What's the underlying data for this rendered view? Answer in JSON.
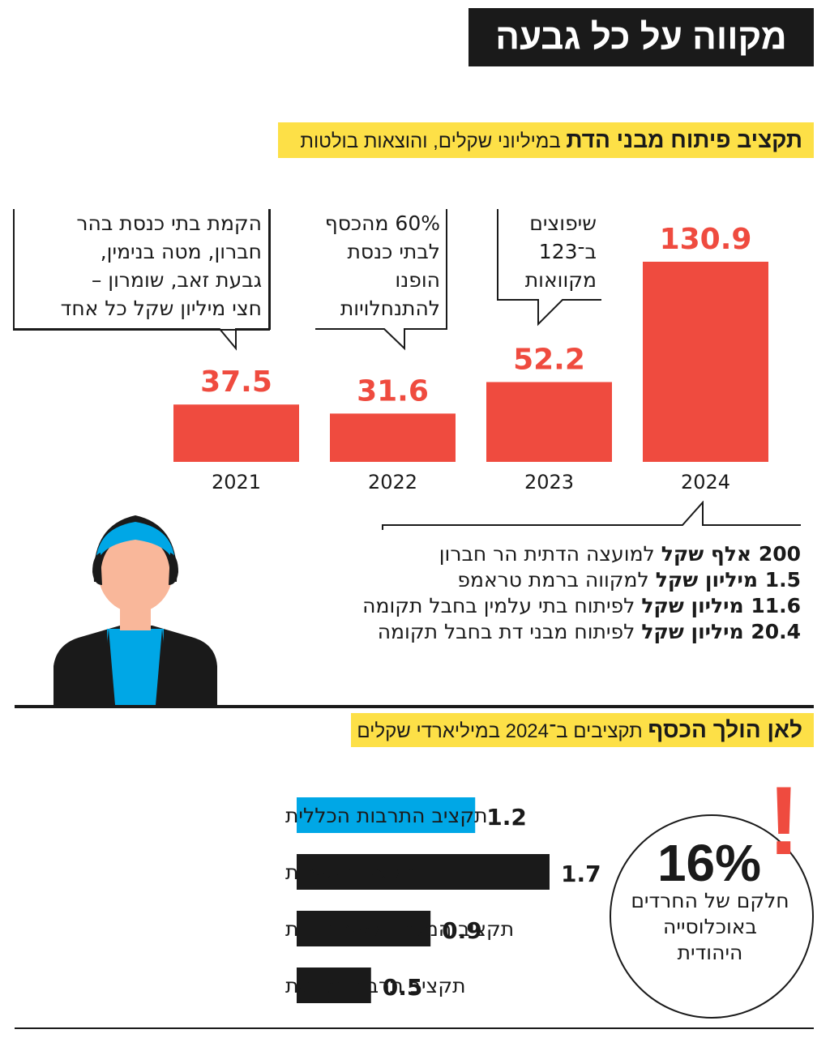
{
  "title": "מקווה על כל גבעה",
  "section1": {
    "heading_bold": "תקציב פיתוח מבני הדת",
    "heading_rest": "במיליוני שקלים, והוצאות בולטות"
  },
  "chart_data": [
    {
      "type": "bar",
      "categories": [
        "2021",
        "2022",
        "2023",
        "2024"
      ],
      "values": [
        37.5,
        31.6,
        52.2,
        130.9
      ],
      "value_labels": [
        "37.5",
        "31.6",
        "52.2",
        "130.9"
      ],
      "bar_color": "#ef4b3f",
      "label_color": "#ef4b3f",
      "title": "תקציב פיתוח מבני הדת במיליוני שקלים, והוצאות בולטות",
      "ylim": [
        0,
        130.9
      ],
      "grid": false
    },
    {
      "type": "bar",
      "orientation": "horizontal",
      "categories": [
        "תקציב התרבות הכללית",
        "תקציב הישיבות",
        "תקציב המשרד לשירותי דת",
        "תקציב תרבות תורנית"
      ],
      "values": [
        1.2,
        1.7,
        0.9,
        0.5
      ],
      "value_labels": [
        "1.2",
        "1.7",
        "0.9",
        "0.5"
      ],
      "colors": [
        "#00a7e6",
        "#1a1a1a",
        "#1a1a1a",
        "#1a1a1a"
      ],
      "title": "לאן הולך הכסף תקציבים ב־2024 במיליארדי שקלים",
      "xlim": [
        0,
        1.7
      ],
      "grid": false
    }
  ],
  "callouts": {
    "c2021": [
      "הקמת בתי כנסת בהר",
      "חברון, מטה בנימין,",
      "גבעת זאב, שומרון –",
      "חצי מיליון שקל כל אחד"
    ],
    "c2022": [
      "60% מהכסף",
      "לבתי כנסת",
      "הופנו",
      "להתנחלויות"
    ],
    "c2023": [
      "שיפוצים",
      "ב־123",
      "מקוואות"
    ]
  },
  "spending_list": [
    {
      "bold": "200 אלף שקל",
      "rest": "למועצה הדתית הר חברון"
    },
    {
      "bold": "1.5 מיליון שקל",
      "rest": "למקווה ברמת טראמפ"
    },
    {
      "bold": "11.6 מיליון שקל",
      "rest": "לפיתוח בתי עלמין בחבל תקומה"
    },
    {
      "bold": "20.4 מיליון שקל",
      "rest": "לפיתוח מבני דת בחבל תקומה"
    }
  ],
  "section2": {
    "heading_bold": "לאן הולך הכסף",
    "heading_rest": "תקציבים ב־2024 במיליארדי שקלים"
  },
  "stat": {
    "exclaim": "!",
    "value": "16%",
    "caption": [
      "חלקם של החרדים",
      "באוכלוסייה",
      "היהודית"
    ]
  },
  "icons": {
    "figure": "woman-headscarf-icon"
  },
  "colors": {
    "accent_red": "#ef4b3f",
    "highlight_yellow": "#fde047",
    "blue": "#00a7e6",
    "dark": "#1a1a1a",
    "skin": "#f9b79a"
  }
}
